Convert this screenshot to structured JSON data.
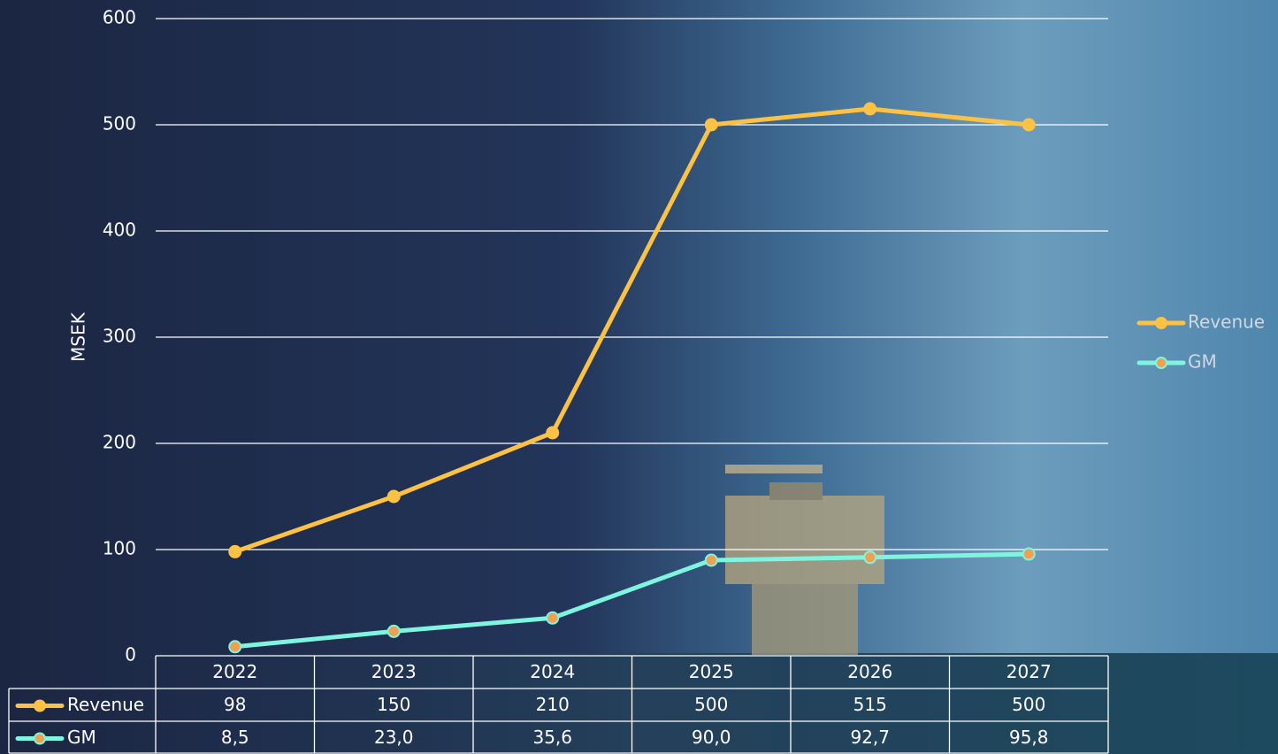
{
  "chart_data": {
    "type": "line",
    "y_label": "MSEK",
    "categories": [
      "2022",
      "2023",
      "2024",
      "2025",
      "2026",
      "2027"
    ],
    "series": [
      {
        "name": "Revenue",
        "color": "#fdc244",
        "marker_color": "#fdc244",
        "values": [
          98,
          150,
          210,
          500,
          515,
          500
        ]
      },
      {
        "name": "GM",
        "color": "#7ff5e0",
        "marker_color": "#f0a050",
        "values": [
          8.5,
          23.0,
          35.6,
          90.0,
          92.7,
          95.8
        ],
        "value_labels": [
          "8,5",
          "23,0",
          "35,6",
          "90,0",
          "92,7",
          "95,8"
        ]
      }
    ],
    "ylim": [
      0,
      600
    ],
    "yticks": [
      0,
      100,
      200,
      300,
      400,
      500,
      600
    ],
    "grid": true,
    "legend": "right"
  }
}
